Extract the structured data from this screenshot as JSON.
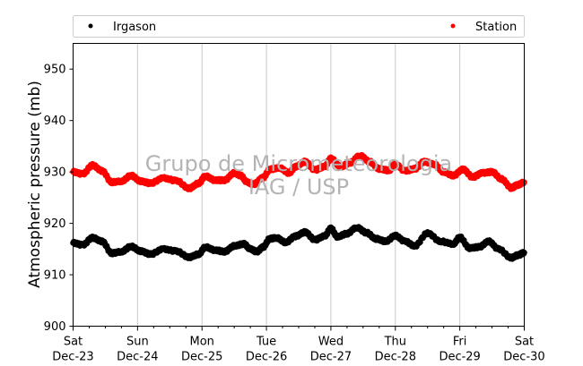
{
  "chart_data": {
    "type": "scatter",
    "ylabel": "Atmospheric pressure (mb)",
    "ylim": [
      900,
      955
    ],
    "yticks": [
      900,
      910,
      920,
      930,
      940,
      950
    ],
    "xlim": [
      0,
      7
    ],
    "xticks": [
      {
        "x": 0,
        "day": "Sat",
        "date": "Dec-23"
      },
      {
        "x": 1,
        "day": "Sun",
        "date": "Dec-24"
      },
      {
        "x": 2,
        "day": "Mon",
        "date": "Dec-25"
      },
      {
        "x": 3,
        "day": "Tue",
        "date": "Dec-26"
      },
      {
        "x": 4,
        "day": "Wed",
        "date": "Dec-27"
      },
      {
        "x": 5,
        "day": "Thu",
        "date": "Dec-28"
      },
      {
        "x": 6,
        "day": "Fri",
        "date": "Dec-29"
      },
      {
        "x": 7,
        "day": "Sat",
        "date": "Dec-30"
      }
    ],
    "grid": "vertical",
    "legend_position": "top",
    "series": [
      {
        "name": "Irgason",
        "color": "#000000",
        "points": [
          [
            0.0,
            916.2
          ],
          [
            0.15,
            915.8
          ],
          [
            0.3,
            917.2
          ],
          [
            0.45,
            916.5
          ],
          [
            0.6,
            914.2
          ],
          [
            0.75,
            914.5
          ],
          [
            0.9,
            915.5
          ],
          [
            1.05,
            914.6
          ],
          [
            1.2,
            914.0
          ],
          [
            1.4,
            915.0
          ],
          [
            1.6,
            914.6
          ],
          [
            1.8,
            913.4
          ],
          [
            1.95,
            914.0
          ],
          [
            2.05,
            915.4
          ],
          [
            2.2,
            914.8
          ],
          [
            2.35,
            914.5
          ],
          [
            2.5,
            915.6
          ],
          [
            2.65,
            916.0
          ],
          [
            2.75,
            915.0
          ],
          [
            2.85,
            914.5
          ],
          [
            2.95,
            915.4
          ],
          [
            3.05,
            917.0
          ],
          [
            3.15,
            917.2
          ],
          [
            3.3,
            916.3
          ],
          [
            3.45,
            917.5
          ],
          [
            3.6,
            918.3
          ],
          [
            3.75,
            916.8
          ],
          [
            3.9,
            917.5
          ],
          [
            4.0,
            919.0
          ],
          [
            4.1,
            917.4
          ],
          [
            4.25,
            918.0
          ],
          [
            4.4,
            919.2
          ],
          [
            4.55,
            918.2
          ],
          [
            4.7,
            917.0
          ],
          [
            4.85,
            916.5
          ],
          [
            5.0,
            917.6
          ],
          [
            5.15,
            916.5
          ],
          [
            5.3,
            915.6
          ],
          [
            5.5,
            918.1
          ],
          [
            5.7,
            916.5
          ],
          [
            5.9,
            916.0
          ],
          [
            6.0,
            917.3
          ],
          [
            6.15,
            915.2
          ],
          [
            6.3,
            915.4
          ],
          [
            6.45,
            916.5
          ],
          [
            6.6,
            915.0
          ],
          [
            6.8,
            913.3
          ],
          [
            6.9,
            913.8
          ],
          [
            7.0,
            914.3
          ]
        ]
      },
      {
        "name": "Station",
        "color": "#ff0000",
        "points": [
          [
            0.0,
            930.0
          ],
          [
            0.15,
            929.6
          ],
          [
            0.3,
            931.3
          ],
          [
            0.45,
            930.2
          ],
          [
            0.6,
            928.0
          ],
          [
            0.75,
            928.2
          ],
          [
            0.9,
            929.3
          ],
          [
            1.05,
            928.2
          ],
          [
            1.2,
            927.8
          ],
          [
            1.4,
            928.8
          ],
          [
            1.6,
            928.3
          ],
          [
            1.8,
            926.8
          ],
          [
            1.95,
            927.8
          ],
          [
            2.05,
            929.2
          ],
          [
            2.2,
            928.4
          ],
          [
            2.35,
            928.4
          ],
          [
            2.5,
            929.8
          ],
          [
            2.6,
            929.3
          ],
          [
            2.7,
            928.0
          ],
          [
            2.8,
            927.6
          ],
          [
            2.95,
            928.9
          ],
          [
            3.05,
            930.5
          ],
          [
            3.2,
            930.8
          ],
          [
            3.35,
            929.8
          ],
          [
            3.45,
            931.0
          ],
          [
            3.6,
            932.0
          ],
          [
            3.75,
            930.4
          ],
          [
            3.9,
            931.0
          ],
          [
            4.0,
            932.6
          ],
          [
            4.15,
            931.0
          ],
          [
            4.3,
            931.8
          ],
          [
            4.45,
            933.2
          ],
          [
            4.6,
            932.0
          ],
          [
            4.75,
            930.6
          ],
          [
            4.9,
            930.3
          ],
          [
            5.0,
            931.5
          ],
          [
            5.15,
            930.2
          ],
          [
            5.3,
            930.6
          ],
          [
            5.45,
            932.0
          ],
          [
            5.6,
            931.5
          ],
          [
            5.75,
            930.0
          ],
          [
            5.9,
            929.3
          ],
          [
            6.05,
            930.5
          ],
          [
            6.2,
            929.0
          ],
          [
            6.35,
            929.8
          ],
          [
            6.5,
            930.0
          ],
          [
            6.65,
            928.6
          ],
          [
            6.8,
            926.9
          ],
          [
            6.9,
            927.5
          ],
          [
            7.0,
            928.0
          ]
        ]
      }
    ],
    "watermark": [
      "Grupo de Micrometeorologia",
      "IAG / USP"
    ]
  }
}
